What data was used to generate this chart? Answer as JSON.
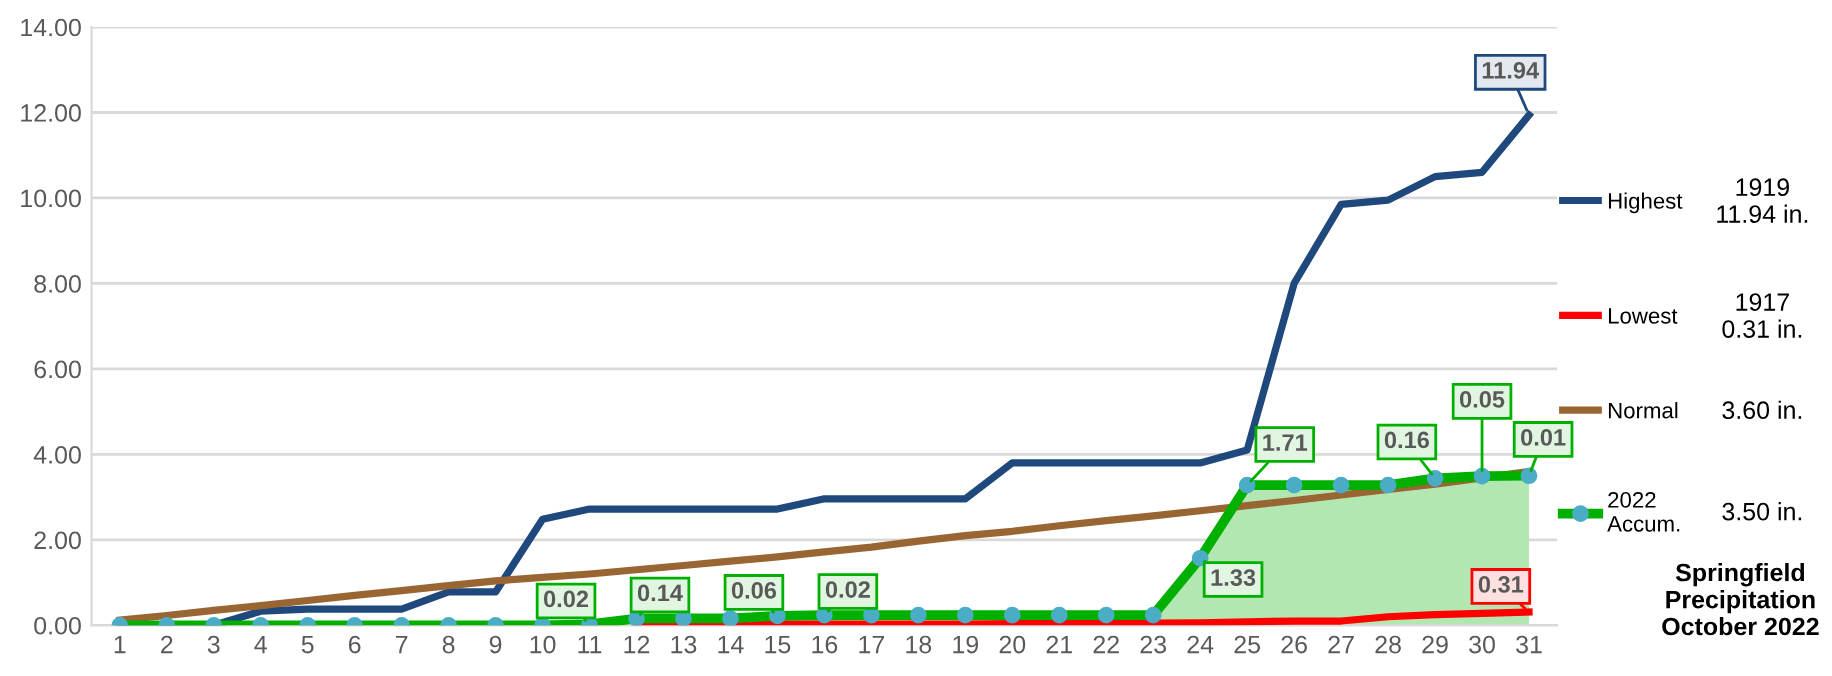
{
  "chart_data": {
    "type": "line",
    "title": "Springfield\nPrecipitation\nOctober 2022",
    "categories": [
      "1",
      "2",
      "3",
      "4",
      "5",
      "6",
      "7",
      "8",
      "9",
      "10",
      "11",
      "12",
      "13",
      "14",
      "15",
      "16",
      "17",
      "18",
      "19",
      "20",
      "21",
      "22",
      "23",
      "24",
      "25",
      "26",
      "27",
      "28",
      "29",
      "30",
      "31"
    ],
    "series": [
      {
        "name": "Highest",
        "color": "#1f497d",
        "marker": "none",
        "values": [
          0,
          0,
          0,
          0.33,
          0.38,
          0.38,
          0.38,
          0.78,
          0.78,
          2.48,
          2.72,
          2.72,
          2.72,
          2.72,
          2.72,
          2.96,
          2.96,
          2.96,
          2.96,
          3.8,
          3.8,
          3.8,
          3.8,
          3.8,
          4.1,
          8.0,
          9.85,
          9.95,
          10.5,
          10.6,
          11.94
        ]
      },
      {
        "name": "Lowest",
        "color": "#ff0000",
        "marker": "none",
        "values": [
          null,
          null,
          null,
          null,
          null,
          null,
          null,
          null,
          null,
          null,
          null,
          0.02,
          0.02,
          0.02,
          0.03,
          0.03,
          0.03,
          0.03,
          0.03,
          0.04,
          0.04,
          0.05,
          0.05,
          0.06,
          0.08,
          0.1,
          0.1,
          0.2,
          0.25,
          0.28,
          0.31
        ]
      },
      {
        "name": "Normal",
        "color": "#996633",
        "marker": "none",
        "values": [
          0.12,
          0.23,
          0.35,
          0.46,
          0.58,
          0.7,
          0.81,
          0.93,
          1.04,
          1.12,
          1.2,
          1.3,
          1.4,
          1.5,
          1.6,
          1.72,
          1.83,
          1.97,
          2.1,
          2.2,
          2.33,
          2.45,
          2.56,
          2.68,
          2.8,
          2.92,
          3.05,
          3.18,
          3.3,
          3.45,
          3.6
        ]
      },
      {
        "name": "2022\nAccum.",
        "type": "area",
        "color": "#00b000",
        "marker": "circle",
        "values": [
          0,
          0,
          0,
          0,
          0,
          0,
          0,
          0,
          0,
          0,
          0.02,
          0.16,
          0.16,
          0.16,
          0.22,
          0.24,
          0.24,
          0.24,
          0.24,
          0.24,
          0.24,
          0.24,
          0.24,
          1.57,
          3.28,
          3.28,
          3.28,
          3.28,
          3.44,
          3.49,
          3.5
        ]
      }
    ],
    "annotations": [
      "1919\n11.94 in.",
      "1917\n0.31 in.",
      "3.60 in.",
      "3.50 in.",
      {
        "text": "0.02",
        "x": "11",
        "y": 0.02
      },
      {
        "text": "0.14",
        "x": "12",
        "y": 0.16
      },
      {
        "text": "0.06",
        "x": "15",
        "y": 0.22
      },
      {
        "text": "0.02",
        "x": "16",
        "y": 0.24
      },
      {
        "text": "1.33",
        "x": "24",
        "y": 1.57
      },
      {
        "text": "1.71",
        "x": "25",
        "y": 3.28
      },
      {
        "text": "0.16",
        "x": "29",
        "y": 3.44
      },
      {
        "text": "0.05",
        "x": "30",
        "y": 3.49
      },
      {
        "text": "0.01",
        "x": "31",
        "y": 3.5
      },
      {
        "text": "11.94",
        "x": "31",
        "y": 11.94
      },
      {
        "text": "0.31",
        "x": "31",
        "y": 0.31
      }
    ],
    "ylim": [
      0,
      14
    ],
    "yticks": [
      {
        "value": 0,
        "label": "0.00"
      },
      {
        "value": 2,
        "label": "2.00"
      },
      {
        "value": 4,
        "label": "4.00"
      },
      {
        "value": 6,
        "label": "6.00"
      },
      {
        "value": 8,
        "label": "8.00"
      },
      {
        "value": 10,
        "label": "10.00"
      },
      {
        "value": 12,
        "label": "12.00"
      },
      {
        "value": 14,
        "label": "14.00"
      }
    ],
    "grid": "y",
    "legend": "right"
  }
}
